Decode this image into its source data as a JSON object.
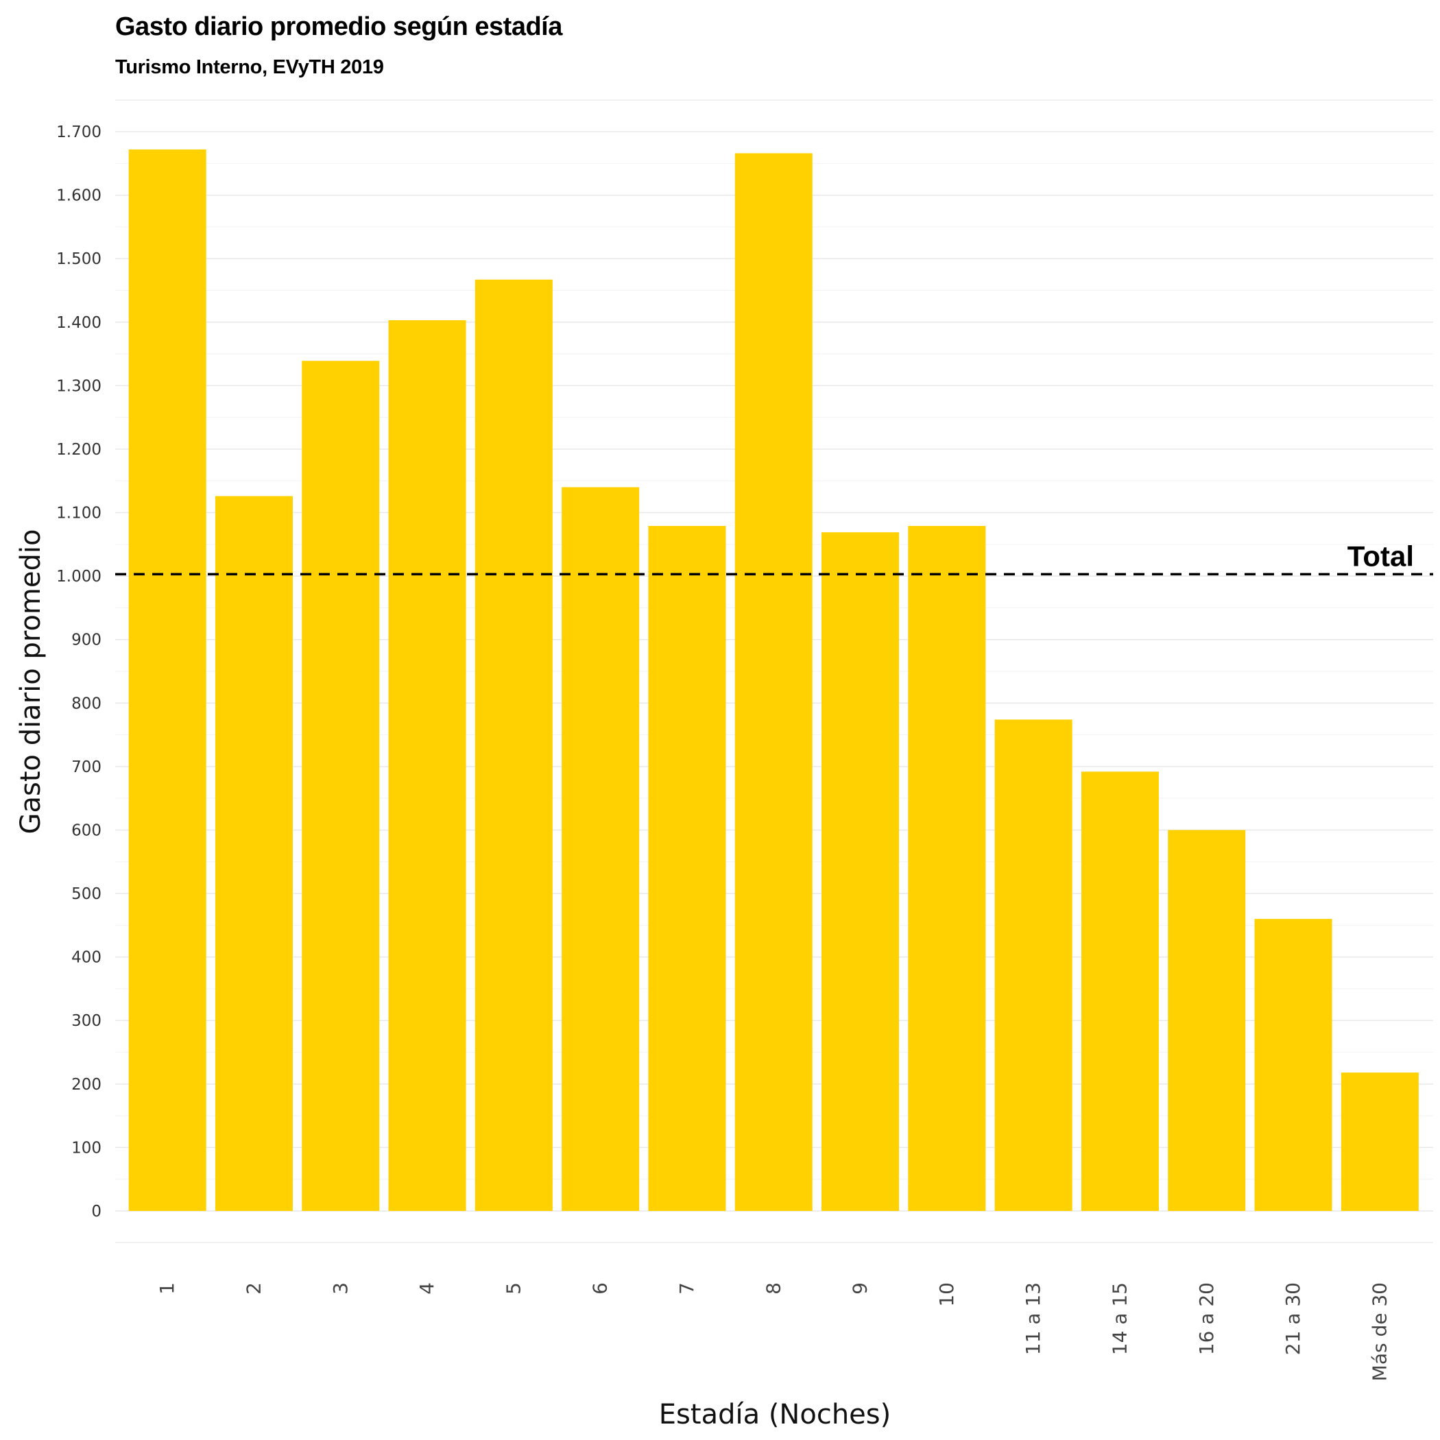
{
  "chart_data": {
    "type": "bar",
    "title": "Gasto diario promedio según estadía",
    "subtitle": "Turismo Interno, EVyTH 2019",
    "xlabel": "Estadía (Noches)",
    "ylabel": "Gasto diario promedio",
    "categories": [
      "1",
      "2",
      "3",
      "4",
      "5",
      "6",
      "7",
      "8",
      "9",
      "10",
      "11 a 13",
      "14 a 15",
      "16 a 20",
      "21 a 30",
      "Más de 30"
    ],
    "values": [
      1672,
      1126,
      1339,
      1403,
      1467,
      1140,
      1079,
      1666,
      1069,
      1079,
      774,
      692,
      600,
      460,
      218
    ],
    "ylim": [
      0,
      1700
    ],
    "yticks": [
      0,
      100,
      200,
      300,
      400,
      500,
      600,
      700,
      800,
      900,
      1000,
      1100,
      1200,
      1300,
      1400,
      1500,
      1600,
      1700
    ],
    "ytick_labels": [
      "0",
      "100",
      "200",
      "300",
      "400",
      "500",
      "600",
      "700",
      "800",
      "900",
      "1.000",
      "1.100",
      "1.200",
      "1.300",
      "1.400",
      "1.500",
      "1.600",
      "1.700"
    ],
    "reference_line": {
      "value": 1003,
      "label": "Total",
      "style": "dashed",
      "color": "#000000"
    },
    "bar_color": "#FFD100",
    "grid_color": "#e8e8e8",
    "grid": true,
    "legend": "none"
  }
}
